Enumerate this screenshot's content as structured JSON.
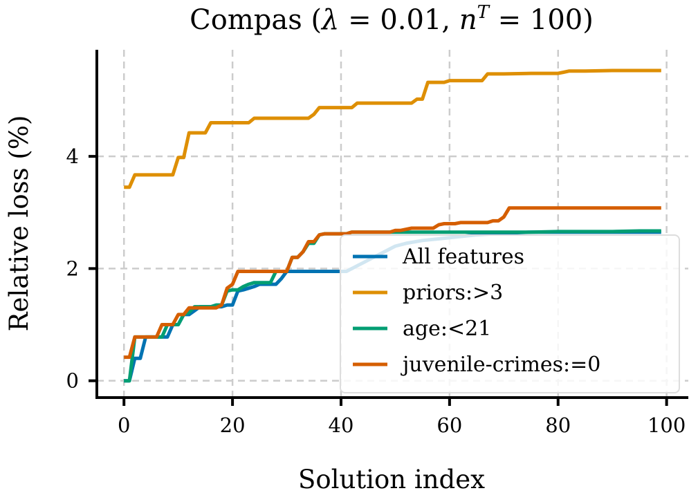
{
  "chart_data": {
    "type": "line",
    "title": "Compas (λ = 0.01, n^T = 100)",
    "title_parts": {
      "prefix": "Compas (",
      "lambda_symbol": "λ",
      "lambda_eq": " = 0.01, ",
      "n_symbol": "n",
      "n_superscript": "T",
      "n_eq": " = 100)"
    },
    "xlabel": "Solution index",
    "ylabel": "Relative loss (%)",
    "xlim": [
      -5,
      104
    ],
    "ylim": [
      -0.3,
      5.9
    ],
    "xticks": [
      0,
      20,
      40,
      60,
      80,
      100
    ],
    "yticks": [
      0,
      2,
      4
    ],
    "grid": true,
    "legend_position": "lower-right",
    "series": [
      {
        "name": "All features",
        "color": "#0173b2",
        "points": [
          [
            0,
            0
          ],
          [
            1,
            0
          ],
          [
            2,
            0.4
          ],
          [
            3,
            0.4
          ],
          [
            4,
            0.78
          ],
          [
            5,
            0.78
          ],
          [
            6,
            0.78
          ],
          [
            7,
            0.78
          ],
          [
            8,
            0.78
          ],
          [
            9,
            1.0
          ],
          [
            10,
            1.0
          ],
          [
            11,
            1.18
          ],
          [
            12,
            1.18
          ],
          [
            13,
            1.25
          ],
          [
            14,
            1.32
          ],
          [
            15,
            1.32
          ],
          [
            16,
            1.32
          ],
          [
            17,
            1.32
          ],
          [
            18,
            1.32
          ],
          [
            19,
            1.35
          ],
          [
            20,
            1.35
          ],
          [
            21,
            1.6
          ],
          [
            22,
            1.62
          ],
          [
            23,
            1.65
          ],
          [
            24,
            1.68
          ],
          [
            25,
            1.72
          ],
          [
            26,
            1.72
          ],
          [
            27,
            1.72
          ],
          [
            28,
            1.72
          ],
          [
            29,
            1.82
          ],
          [
            30,
            1.95
          ],
          [
            31,
            1.95
          ],
          [
            32,
            1.95
          ],
          [
            33,
            1.95
          ],
          [
            34,
            1.95
          ],
          [
            35,
            1.95
          ],
          [
            36,
            1.95
          ],
          [
            37,
            1.95
          ],
          [
            38,
            1.95
          ],
          [
            39,
            1.95
          ],
          [
            40,
            1.95
          ],
          [
            41,
            1.95
          ],
          [
            42,
            2.0
          ],
          [
            43,
            2.05
          ],
          [
            44,
            2.1
          ],
          [
            45,
            2.15
          ],
          [
            46,
            2.2
          ],
          [
            47,
            2.25
          ],
          [
            48,
            2.3
          ],
          [
            49,
            2.35
          ],
          [
            50,
            2.4
          ],
          [
            52,
            2.45
          ],
          [
            55,
            2.5
          ],
          [
            60,
            2.55
          ],
          [
            65,
            2.6
          ],
          [
            70,
            2.63
          ],
          [
            75,
            2.65
          ],
          [
            80,
            2.65
          ],
          [
            85,
            2.65
          ],
          [
            90,
            2.65
          ],
          [
            99,
            2.65
          ]
        ]
      },
      {
        "name": "priors:>3",
        "color": "#de8f05",
        "points": [
          [
            0,
            3.45
          ],
          [
            1,
            3.45
          ],
          [
            2,
            3.67
          ],
          [
            3,
            3.67
          ],
          [
            4,
            3.67
          ],
          [
            5,
            3.67
          ],
          [
            6,
            3.67
          ],
          [
            7,
            3.67
          ],
          [
            8,
            3.67
          ],
          [
            9,
            3.67
          ],
          [
            10,
            3.98
          ],
          [
            11,
            3.98
          ],
          [
            12,
            4.42
          ],
          [
            13,
            4.42
          ],
          [
            14,
            4.42
          ],
          [
            15,
            4.42
          ],
          [
            16,
            4.6
          ],
          [
            17,
            4.6
          ],
          [
            18,
            4.6
          ],
          [
            19,
            4.6
          ],
          [
            20,
            4.6
          ],
          [
            21,
            4.6
          ],
          [
            22,
            4.6
          ],
          [
            23,
            4.6
          ],
          [
            24,
            4.68
          ],
          [
            25,
            4.68
          ],
          [
            26,
            4.68
          ],
          [
            27,
            4.68
          ],
          [
            28,
            4.68
          ],
          [
            29,
            4.68
          ],
          [
            30,
            4.68
          ],
          [
            31,
            4.68
          ],
          [
            32,
            4.68
          ],
          [
            33,
            4.68
          ],
          [
            34,
            4.68
          ],
          [
            35,
            4.75
          ],
          [
            36,
            4.87
          ],
          [
            37,
            4.87
          ],
          [
            38,
            4.87
          ],
          [
            39,
            4.87
          ],
          [
            40,
            4.87
          ],
          [
            41,
            4.87
          ],
          [
            42,
            4.87
          ],
          [
            43,
            4.95
          ],
          [
            44,
            4.95
          ],
          [
            45,
            4.95
          ],
          [
            46,
            4.95
          ],
          [
            47,
            4.95
          ],
          [
            48,
            4.95
          ],
          [
            49,
            4.95
          ],
          [
            50,
            4.95
          ],
          [
            51,
            4.95
          ],
          [
            52,
            4.95
          ],
          [
            53,
            4.95
          ],
          [
            54,
            5.02
          ],
          [
            55,
            5.02
          ],
          [
            56,
            5.32
          ],
          [
            57,
            5.32
          ],
          [
            58,
            5.32
          ],
          [
            59,
            5.32
          ],
          [
            60,
            5.35
          ],
          [
            61,
            5.35
          ],
          [
            62,
            5.35
          ],
          [
            63,
            5.35
          ],
          [
            64,
            5.35
          ],
          [
            65,
            5.35
          ],
          [
            66,
            5.35
          ],
          [
            67,
            5.47
          ],
          [
            68,
            5.47
          ],
          [
            70,
            5.47
          ],
          [
            75,
            5.48
          ],
          [
            80,
            5.48
          ],
          [
            81,
            5.5
          ],
          [
            82,
            5.52
          ],
          [
            85,
            5.52
          ],
          [
            90,
            5.53
          ],
          [
            95,
            5.53
          ],
          [
            99,
            5.53
          ]
        ]
      },
      {
        "name": "age:<21",
        "color": "#029e73",
        "points": [
          [
            0,
            0
          ],
          [
            1,
            0
          ],
          [
            2,
            0.78
          ],
          [
            3,
            0.78
          ],
          [
            4,
            0.78
          ],
          [
            5,
            0.78
          ],
          [
            6,
            0.78
          ],
          [
            7,
            0.78
          ],
          [
            8,
            1.0
          ],
          [
            9,
            1.0
          ],
          [
            10,
            1.0
          ],
          [
            11,
            1.18
          ],
          [
            12,
            1.22
          ],
          [
            13,
            1.32
          ],
          [
            14,
            1.32
          ],
          [
            15,
            1.32
          ],
          [
            16,
            1.32
          ],
          [
            17,
            1.35
          ],
          [
            18,
            1.35
          ],
          [
            19,
            1.6
          ],
          [
            20,
            1.62
          ],
          [
            21,
            1.62
          ],
          [
            22,
            1.68
          ],
          [
            23,
            1.72
          ],
          [
            24,
            1.75
          ],
          [
            25,
            1.75
          ],
          [
            26,
            1.75
          ],
          [
            27,
            1.75
          ],
          [
            28,
            1.95
          ],
          [
            29,
            1.95
          ],
          [
            30,
            1.95
          ],
          [
            31,
            2.2
          ],
          [
            32,
            2.2
          ],
          [
            33,
            2.3
          ],
          [
            34,
            2.45
          ],
          [
            35,
            2.45
          ],
          [
            36,
            2.6
          ],
          [
            37,
            2.62
          ],
          [
            38,
            2.62
          ],
          [
            39,
            2.62
          ],
          [
            40,
            2.62
          ],
          [
            41,
            2.62
          ],
          [
            42,
            2.65
          ],
          [
            45,
            2.65
          ],
          [
            50,
            2.65
          ],
          [
            55,
            2.65
          ],
          [
            60,
            2.65
          ],
          [
            65,
            2.65
          ],
          [
            70,
            2.65
          ],
          [
            75,
            2.65
          ],
          [
            80,
            2.66
          ],
          [
            85,
            2.66
          ],
          [
            90,
            2.66
          ],
          [
            95,
            2.67
          ],
          [
            99,
            2.67
          ]
        ]
      },
      {
        "name": "juvenile-crimes:=0",
        "color": "#d55e00",
        "points": [
          [
            0,
            0.42
          ],
          [
            1,
            0.42
          ],
          [
            2,
            0.78
          ],
          [
            3,
            0.78
          ],
          [
            4,
            0.78
          ],
          [
            5,
            0.78
          ],
          [
            6,
            0.78
          ],
          [
            7,
            1.0
          ],
          [
            8,
            1.0
          ],
          [
            9,
            1.0
          ],
          [
            10,
            1.18
          ],
          [
            11,
            1.18
          ],
          [
            12,
            1.3
          ],
          [
            13,
            1.3
          ],
          [
            14,
            1.3
          ],
          [
            15,
            1.3
          ],
          [
            16,
            1.3
          ],
          [
            17,
            1.3
          ],
          [
            18,
            1.35
          ],
          [
            19,
            1.65
          ],
          [
            20,
            1.72
          ],
          [
            21,
            1.95
          ],
          [
            22,
            1.95
          ],
          [
            23,
            1.95
          ],
          [
            24,
            1.95
          ],
          [
            25,
            1.95
          ],
          [
            26,
            1.95
          ],
          [
            27,
            1.95
          ],
          [
            28,
            1.95
          ],
          [
            29,
            1.95
          ],
          [
            30,
            1.95
          ],
          [
            31,
            2.2
          ],
          [
            32,
            2.2
          ],
          [
            33,
            2.3
          ],
          [
            34,
            2.48
          ],
          [
            35,
            2.48
          ],
          [
            36,
            2.6
          ],
          [
            37,
            2.62
          ],
          [
            38,
            2.62
          ],
          [
            39,
            2.62
          ],
          [
            40,
            2.62
          ],
          [
            41,
            2.62
          ],
          [
            42,
            2.65
          ],
          [
            43,
            2.65
          ],
          [
            44,
            2.65
          ],
          [
            45,
            2.65
          ],
          [
            46,
            2.65
          ],
          [
            47,
            2.65
          ],
          [
            48,
            2.65
          ],
          [
            49,
            2.65
          ],
          [
            50,
            2.68
          ],
          [
            51,
            2.68
          ],
          [
            52,
            2.7
          ],
          [
            53,
            2.72
          ],
          [
            54,
            2.72
          ],
          [
            55,
            2.72
          ],
          [
            56,
            2.72
          ],
          [
            57,
            2.72
          ],
          [
            58,
            2.78
          ],
          [
            59,
            2.8
          ],
          [
            60,
            2.8
          ],
          [
            61,
            2.8
          ],
          [
            62,
            2.82
          ],
          [
            63,
            2.82
          ],
          [
            64,
            2.82
          ],
          [
            65,
            2.82
          ],
          [
            66,
            2.82
          ],
          [
            67,
            2.82
          ],
          [
            68,
            2.85
          ],
          [
            69,
            2.85
          ],
          [
            70,
            2.92
          ],
          [
            71,
            3.08
          ],
          [
            72,
            3.08
          ],
          [
            75,
            3.08
          ],
          [
            80,
            3.08
          ],
          [
            85,
            3.08
          ],
          [
            90,
            3.08
          ],
          [
            95,
            3.08
          ],
          [
            99,
            3.08
          ]
        ]
      }
    ]
  }
}
